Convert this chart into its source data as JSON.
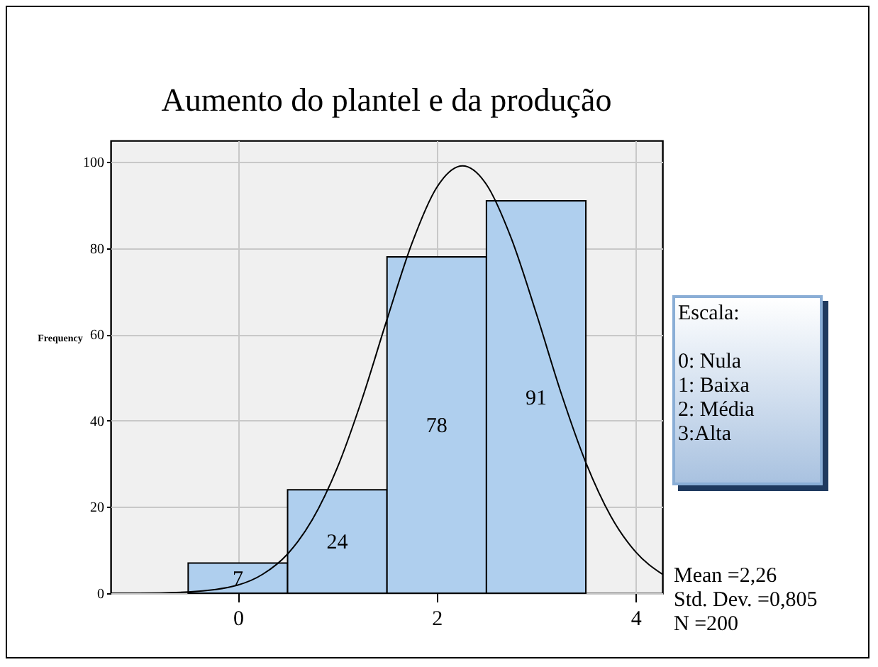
{
  "chart_data": {
    "type": "histogram",
    "title": "Aumento do plantel e da produção",
    "ylabel": "Frequency",
    "bins": [
      -0.5,
      0.5,
      1.5,
      2.5,
      3.5
    ],
    "values": [
      7,
      24,
      78,
      91
    ],
    "color": "#afcfee",
    "value_labels": [
      "7",
      "24",
      "78",
      "91"
    ],
    "series": [
      {
        "type": "line",
        "color": "#000000",
        "x": [
          -1.28,
          -1.0,
          -0.5,
          0,
          0.25,
          0.5,
          0.75,
          1.0,
          1.25,
          1.5,
          1.75,
          2.0,
          2.26,
          2.5,
          2.75,
          3.0,
          3.25,
          3.5,
          3.75,
          4.0,
          4.27
        ],
        "values": [
          0,
          0,
          0.3,
          1.9,
          4.4,
          9.1,
          17.1,
          29.1,
          45.1,
          63.5,
          81.1,
          94.1,
          99.1,
          94.8,
          82.3,
          65.0,
          46.5,
          30.3,
          17.9,
          9.6,
          4.4
        ]
      }
    ],
    "xlim": [
      -1.28,
      4.27
    ],
    "xticks": [
      0,
      2,
      4
    ],
    "ylim": [
      0,
      105
    ],
    "yticks": [
      0,
      20,
      40,
      60,
      80,
      100
    ],
    "grid": true,
    "annotations": [
      "Escala:",
      "0: Nula",
      "1: Baixa",
      "2: Média",
      "3:Alta",
      "Mean =2,26",
      "Std. Dev. =0,805",
      "N =200"
    ]
  }
}
